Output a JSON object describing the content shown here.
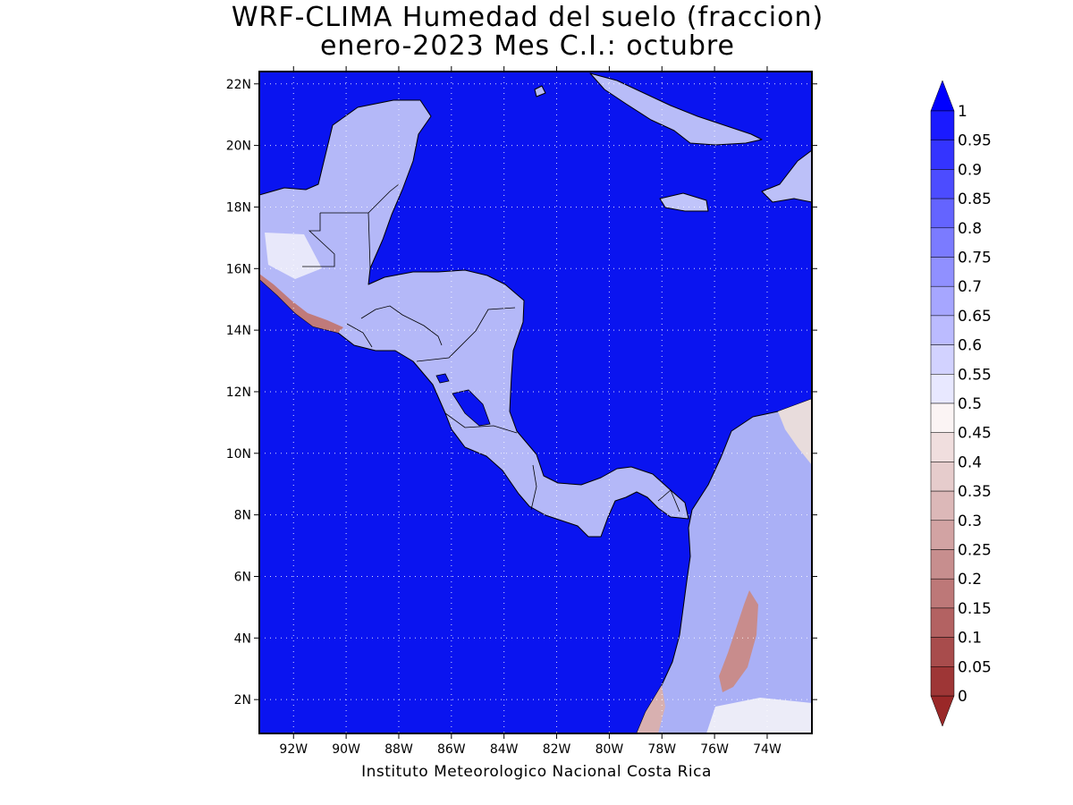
{
  "title_line1": "WRF-CLIMA Humedad del suelo (fraccion)",
  "title_line2": "enero-2023 Mes C.I.: octubre",
  "credit": "Instituto Meteorologico Nacional Costa Rica",
  "map": {
    "lon_range": [
      -93.3,
      -72.3
    ],
    "lat_range": [
      0.9,
      22.4
    ],
    "ocean_color": "#0a14f0",
    "x_ticks": [
      {
        "value": -92,
        "label": "92W"
      },
      {
        "value": -90,
        "label": "90W"
      },
      {
        "value": -88,
        "label": "88W"
      },
      {
        "value": -86,
        "label": "86W"
      },
      {
        "value": -84,
        "label": "84W"
      },
      {
        "value": -82,
        "label": "82W"
      },
      {
        "value": -80,
        "label": "80W"
      },
      {
        "value": -78,
        "label": "78W"
      },
      {
        "value": -76,
        "label": "76W"
      },
      {
        "value": -74,
        "label": "74W"
      }
    ],
    "y_ticks": [
      {
        "value": 22,
        "label": "22N"
      },
      {
        "value": 20,
        "label": "20N"
      },
      {
        "value": 18,
        "label": "18N"
      },
      {
        "value": 16,
        "label": "16N"
      },
      {
        "value": 14,
        "label": "14N"
      },
      {
        "value": 12,
        "label": "12N"
      },
      {
        "value": 10,
        "label": "10N"
      },
      {
        "value": 8,
        "label": "8N"
      },
      {
        "value": 6,
        "label": "6N"
      },
      {
        "value": 4,
        "label": "4N"
      },
      {
        "value": 2,
        "label": "2N"
      }
    ],
    "grid": "dotted"
  },
  "colorbar": {
    "levels": [
      "1",
      "0.95",
      "0.9",
      "0.85",
      "0.8",
      "0.75",
      "0.7",
      "0.65",
      "0.6",
      "0.55",
      "0.5",
      "0.45",
      "0.4",
      "0.35",
      "0.3",
      "0.25",
      "0.2",
      "0.15",
      "0.1",
      "0.05",
      "0"
    ],
    "colors": [
      "#1a1aff",
      "#3434ff",
      "#4c4cff",
      "#6464ff",
      "#7b7bff",
      "#9090ff",
      "#a6a6ff",
      "#bbbbff",
      "#d2d2ff",
      "#e8e8ff",
      "#fbf4f4",
      "#f0dede",
      "#e6cccc",
      "#dcb8b8",
      "#d2a3a3",
      "#c78e8e",
      "#bd7878",
      "#b36262",
      "#a84c4c",
      "#9e3636"
    ],
    "top_arrow_color": "#0000ff",
    "bottom_arrow_color": "#9a2828"
  }
}
